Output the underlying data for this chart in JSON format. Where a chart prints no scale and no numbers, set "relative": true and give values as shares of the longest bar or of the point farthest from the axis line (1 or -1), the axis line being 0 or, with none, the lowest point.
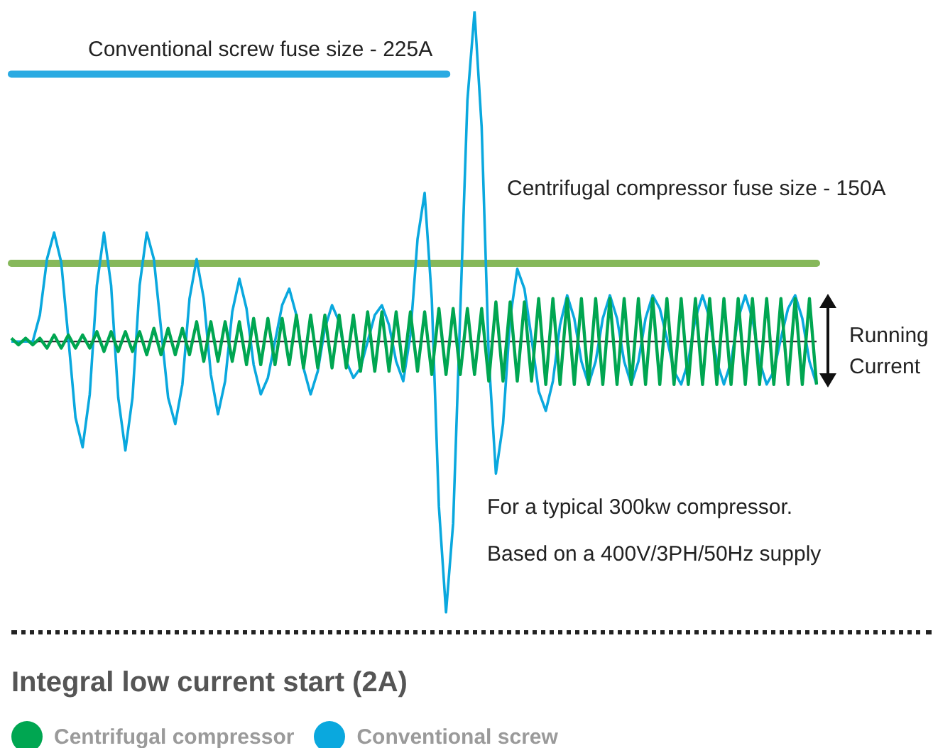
{
  "chart_data": {
    "type": "line",
    "relative": true,
    "legend": "bottom",
    "title": "Integral low current start (2A)",
    "annotations": [
      "For a typical 300kw compressor.",
      "Based on a 400V/3PH/50Hz supply",
      "Running Current"
    ],
    "ref_lines": [
      {
        "axis": "y",
        "value": 0.81,
        "label": "Conventional screw fuse size - 225A",
        "color": "#2aaae2"
      },
      {
        "axis": "y",
        "value": 0.237,
        "label": "Centrifugal compressor fuse size - 150A",
        "color": "#86b85a"
      }
    ],
    "categories": [
      null,
      null,
      null,
      null,
      null,
      null,
      null,
      null,
      null,
      null,
      null,
      null,
      null,
      null,
      null,
      null,
      null,
      null,
      null,
      null,
      null,
      null,
      null,
      null,
      null,
      null,
      null,
      null,
      null,
      null,
      null,
      null,
      null,
      null,
      null,
      null,
      null,
      null,
      null,
      null,
      null,
      null,
      null,
      null,
      null,
      null,
      null,
      null,
      null,
      null,
      null,
      null,
      null,
      null,
      null,
      null,
      null,
      null,
      null,
      null,
      null,
      null,
      null,
      null,
      null,
      null,
      null,
      null,
      null,
      null,
      null,
      null,
      null,
      null,
      null,
      null,
      null,
      null,
      null,
      null,
      null,
      null,
      null,
      null,
      null,
      null,
      null,
      null,
      null,
      null,
      null,
      null,
      null,
      null,
      null,
      null,
      null,
      null,
      null,
      null,
      null,
      null,
      null,
      null,
      null,
      null,
      null,
      null,
      null,
      null,
      null,
      null,
      null,
      null
    ],
    "series": [
      {
        "name": "Centrifugal compressor",
        "color": "#00a651",
        "values": [
          0.01,
          -0.01,
          0.01,
          -0.01,
          0.01,
          -0.02,
          0.02,
          -0.02,
          0.02,
          -0.02,
          0.02,
          -0.02,
          0.03,
          -0.03,
          0.03,
          -0.03,
          0.03,
          -0.03,
          0.03,
          -0.04,
          0.04,
          -0.04,
          0.04,
          -0.04,
          0.04,
          -0.04,
          0.06,
          -0.06,
          0.06,
          -0.06,
          0.06,
          -0.06,
          0.06,
          -0.07,
          0.07,
          -0.07,
          0.07,
          -0.07,
          0.07,
          -0.07,
          0.08,
          -0.08,
          0.08,
          -0.08,
          0.08,
          -0.08,
          0.08,
          -0.08,
          0.08,
          -0.09,
          0.09,
          -0.09,
          0.09,
          -0.09,
          0.09,
          -0.09,
          0.09,
          -0.09,
          0.09,
          -0.1,
          0.1,
          -0.1,
          0.1,
          -0.1,
          0.1,
          -0.1,
          0.1,
          -0.12,
          0.12,
          -0.12,
          0.12,
          -0.12,
          0.12,
          -0.12,
          0.13,
          -0.13,
          0.13,
          -0.13,
          0.13,
          -0.13,
          0.13,
          -0.13,
          0.13,
          -0.13,
          0.13,
          -0.13,
          0.13,
          -0.13,
          0.13,
          -0.13,
          0.13,
          -0.13,
          0.13,
          -0.13,
          0.13,
          -0.13,
          0.13,
          -0.13,
          0.13,
          -0.13,
          0.13,
          -0.13,
          0.13,
          -0.13,
          0.13,
          -0.13,
          0.13,
          -0.13,
          0.13,
          -0.13,
          0.13,
          -0.13,
          0.13,
          -0.13
        ]
      },
      {
        "name": "Conventional screw",
        "color": "#0aa8de",
        "values": [
          0,
          0,
          0,
          0,
          0.08,
          0.25,
          0.33,
          0.24,
          0.01,
          -0.23,
          -0.32,
          -0.16,
          0.17,
          0.33,
          0.17,
          -0.17,
          -0.33,
          -0.17,
          0.17,
          0.33,
          0.25,
          0.04,
          -0.17,
          -0.25,
          -0.13,
          0.13,
          0.25,
          0.13,
          -0.1,
          -0.22,
          -0.12,
          0.09,
          0.19,
          0.1,
          -0.07,
          -0.16,
          -0.11,
          0,
          0.11,
          0.16,
          0.08,
          -0.08,
          -0.16,
          -0.09,
          0.04,
          0.11,
          0.06,
          -0.06,
          -0.11,
          -0.08,
          0,
          0.08,
          0.11,
          0.05,
          -0.06,
          -0.12,
          0.02,
          0.31,
          0.45,
          0.13,
          -0.5,
          -0.82,
          -0.55,
          0.09,
          0.73,
          1,
          0.65,
          -0.05,
          -0.4,
          -0.25,
          0.07,
          0.22,
          0.16,
          0.01,
          -0.15,
          -0.21,
          -0.12,
          0.05,
          0.14,
          0.07,
          -0.06,
          -0.13,
          -0.06,
          0.07,
          0.14,
          0.07,
          -0.06,
          -0.13,
          -0.06,
          0.07,
          0.14,
          0.1,
          0.01,
          -0.09,
          -0.13,
          -0.06,
          0.07,
          0.14,
          0.07,
          -0.06,
          -0.13,
          -0.06,
          0.07,
          0.14,
          0.07,
          -0.06,
          -0.13,
          -0.09,
          0.01,
          0.1,
          0.14,
          0.07,
          -0.06,
          -0.13
        ]
      }
    ]
  }
}
